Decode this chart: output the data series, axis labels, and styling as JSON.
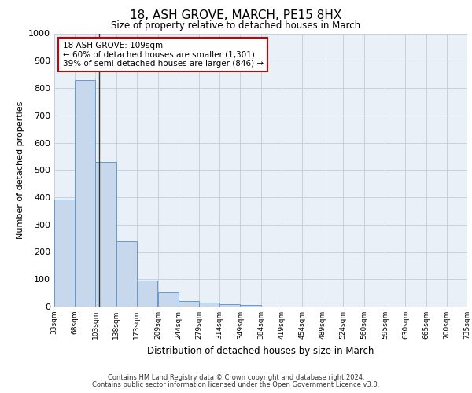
{
  "title": "18, ASH GROVE, MARCH, PE15 8HX",
  "subtitle": "Size of property relative to detached houses in March",
  "xlabel": "Distribution of detached houses by size in March",
  "ylabel": "Number of detached properties",
  "bin_edges": [
    33,
    68,
    103,
    138,
    173,
    209,
    244,
    279,
    314,
    349,
    384,
    419,
    454,
    489,
    524,
    560,
    595,
    630,
    665,
    700,
    735
  ],
  "bin_labels": [
    "33sqm",
    "68sqm",
    "103sqm",
    "138sqm",
    "173sqm",
    "209sqm",
    "244sqm",
    "279sqm",
    "314sqm",
    "349sqm",
    "384sqm",
    "419sqm",
    "454sqm",
    "489sqm",
    "524sqm",
    "560sqm",
    "595sqm",
    "630sqm",
    "665sqm",
    "700sqm",
    "735sqm"
  ],
  "bar_heights": [
    390,
    828,
    530,
    240,
    95,
    52,
    20,
    15,
    8,
    5,
    0,
    0,
    0,
    0,
    0,
    0,
    0,
    0,
    0,
    0
  ],
  "bar_color": "#c8d8ec",
  "bar_edge_color": "#6699cc",
  "vline_x": 109,
  "vline_color": "#333333",
  "annotation_title": "18 ASH GROVE: 109sqm",
  "annotation_line1": "← 60% of detached houses are smaller (1,301)",
  "annotation_line2": "39% of semi-detached houses are larger (846) →",
  "annotation_box_color": "white",
  "annotation_box_edge": "#cc0000",
  "ylim": [
    0,
    1000
  ],
  "yticks": [
    0,
    100,
    200,
    300,
    400,
    500,
    600,
    700,
    800,
    900,
    1000
  ],
  "grid_color": "#c8d0dc",
  "background_color": "#eaf0f8",
  "footer1": "Contains HM Land Registry data © Crown copyright and database right 2024.",
  "footer2": "Contains public sector information licensed under the Open Government Licence v3.0."
}
